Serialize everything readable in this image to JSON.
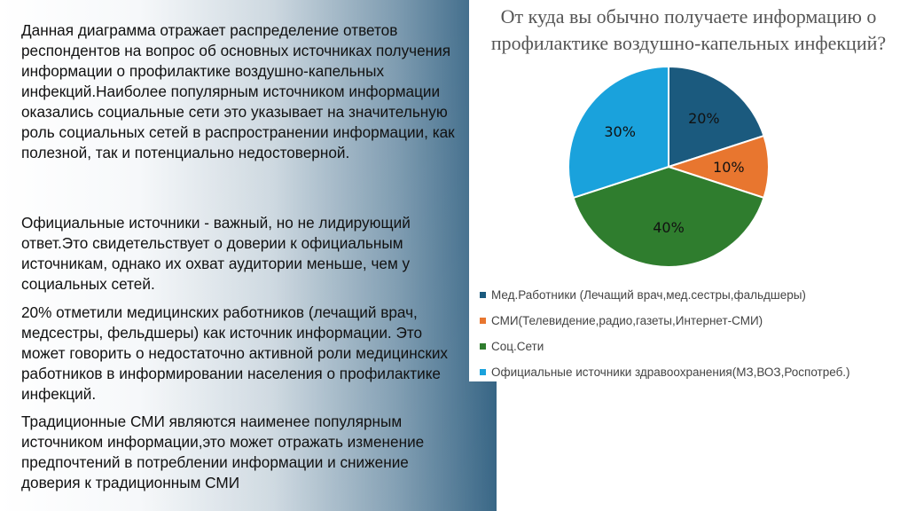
{
  "paragraphs": [
    "Данная диаграмма отражает распределение ответов респондентов на вопрос об основных источниках получения информации о профилактике воздушно-капельных инфекций.Наиболее популярным источником информации оказались социальные сети это указывает на значительную роль социальных сетей в распространении информации, как полезной, так и потенциально недостоверной.",
    "Официальные источники - важный, но не лидирующий ответ.Это свидетельствует о доверии к официальным источникам, однако их охват аудитории меньше, чем у социальных сетей.",
    "20% отметили медицинских работников (лечащий врач, медсестры, фельдшеры) как источник информации. Это может говорить о недостаточно активной роли медицинских работников в информировании населения о профилактике инфекций.",
    "Традиционные СМИ являются наименее популярным источником информации,это может отражать изменение предпочтений в потреблении информации и снижение доверия к традиционным СМИ"
  ],
  "chart_data": {
    "type": "pie",
    "title": "От куда вы обычно получаете информацию о профилактике воздушно-капельных инфекций?",
    "title_lines": [
      "От куда вы обычно получаете информацию о",
      "профилактике воздушно-капельных инфекций?"
    ],
    "slices": [
      {
        "label": "Мед.Работники (Лечащий врач,мед.сестры,фальдшеры)",
        "value": 20,
        "display": "20%",
        "color": "#1b5a7e"
      },
      {
        "label": "СМИ(Телевидение,радио,газеты,Интернет-СМИ)",
        "value": 10,
        "display": "10%",
        "color": "#e8762f"
      },
      {
        "label": "Соц.Сети",
        "value": 40,
        "display": "40%",
        "color": "#2f7d2e"
      },
      {
        "label": "Официальные источники здравоохранения(МЗ,ВОЗ,Роспотреб.)",
        "value": 30,
        "display": "30%",
        "color": "#1aa2dc"
      }
    ],
    "start": "12 o'clock",
    "direction": "clockwise",
    "legend_position": "bottom"
  }
}
